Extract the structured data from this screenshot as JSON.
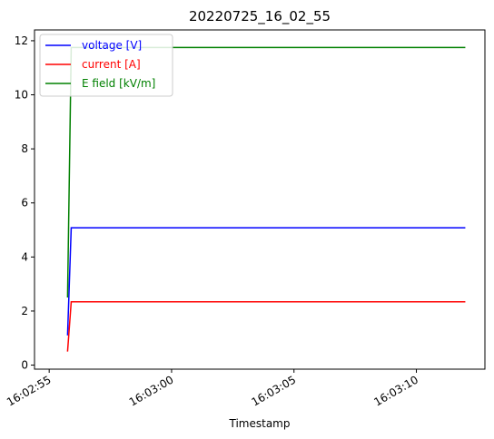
{
  "chart_data": {
    "type": "line",
    "title": "20220725_16_02_55",
    "xlabel": "Timestamp",
    "ylabel": "",
    "x_unit": "seconds",
    "x_origin": "16:02:55",
    "xlim": [
      -0.6,
      17.8
    ],
    "ylim": [
      -0.15,
      12.4
    ],
    "x_ticks": [
      {
        "value": 0,
        "label": "16:02:55"
      },
      {
        "value": 5,
        "label": "16:03:00"
      },
      {
        "value": 10,
        "label": "16:03:05"
      },
      {
        "value": 15,
        "label": "16:03:10"
      }
    ],
    "y_ticks": [
      {
        "value": 0,
        "label": "0"
      },
      {
        "value": 2,
        "label": "2"
      },
      {
        "value": 4,
        "label": "4"
      },
      {
        "value": 6,
        "label": "6"
      },
      {
        "value": 8,
        "label": "8"
      },
      {
        "value": 10,
        "label": "10"
      },
      {
        "value": 12,
        "label": "12"
      }
    ],
    "grid": false,
    "legend_position": "top-left",
    "series": [
      {
        "name": "voltage [V]",
        "color": "#0000ff",
        "x": [
          0.75,
          0.9,
          17.0
        ],
        "values": [
          1.1,
          5.08,
          5.08
        ]
      },
      {
        "name": "current [A]",
        "color": "#ff0000",
        "x": [
          0.75,
          0.9,
          17.0
        ],
        "values": [
          0.5,
          2.34,
          2.34
        ]
      },
      {
        "name": "E field [kV/m]",
        "color": "#008000",
        "x": [
          0.75,
          0.9,
          17.0
        ],
        "values": [
          2.5,
          11.75,
          11.75
        ]
      }
    ]
  }
}
